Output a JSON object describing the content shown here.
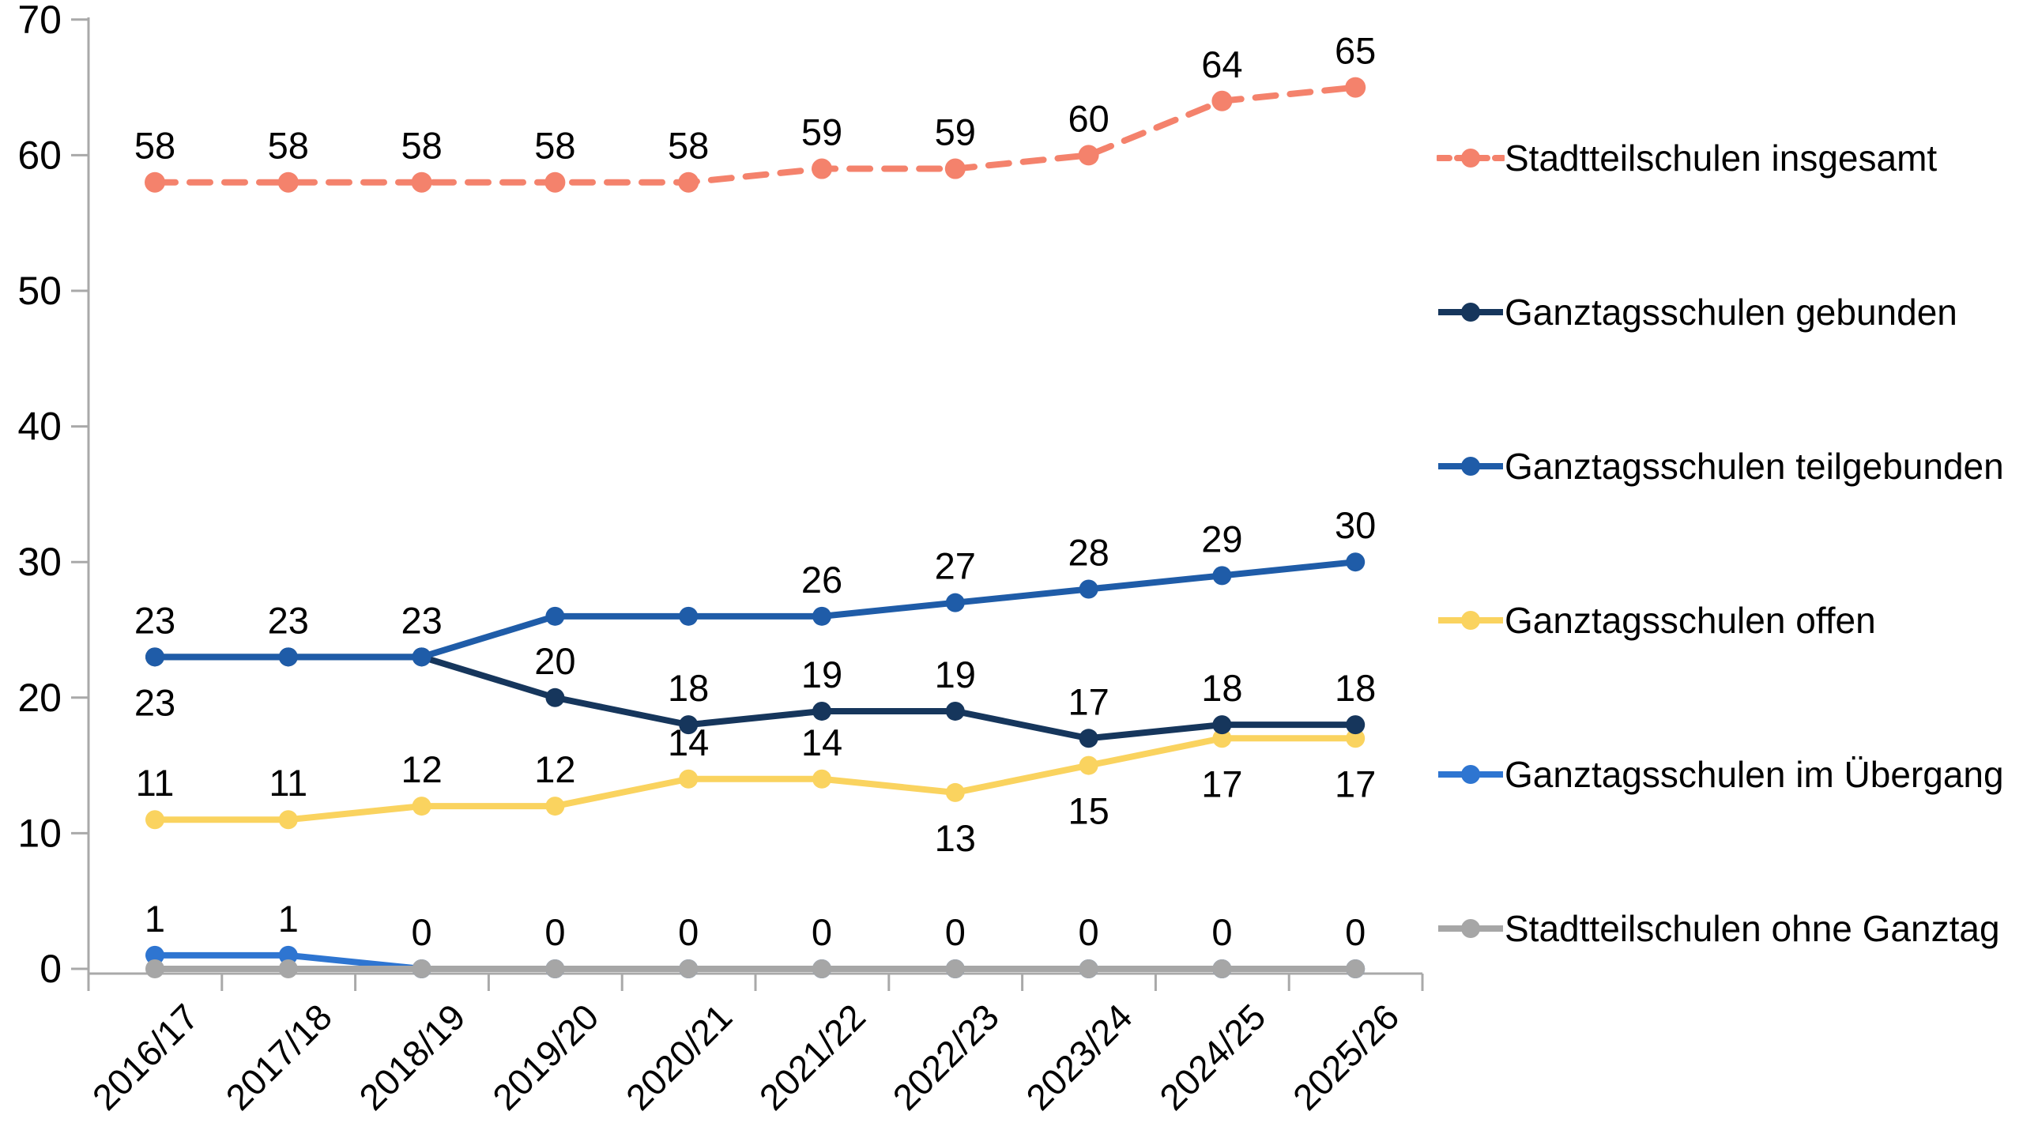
{
  "chart_data": {
    "type": "line",
    "title": "",
    "xlabel": "",
    "ylabel": "",
    "categories": [
      "2016/17",
      "2017/18",
      "2018/19",
      "2019/20",
      "2020/21",
      "2021/22",
      "2022/23",
      "2023/24",
      "2024/25",
      "2025/26"
    ],
    "series": [
      {
        "name": "Stadtteilschulen insgesamt",
        "color": "#F4826C",
        "style": "dashed",
        "values": [
          58,
          58,
          58,
          58,
          58,
          59,
          59,
          60,
          64,
          65
        ],
        "label_pos": [
          "a",
          "a",
          "a",
          "a",
          "a",
          "a",
          "a",
          "a",
          "a",
          "a"
        ]
      },
      {
        "name": "Ganztagsschulen gebunden",
        "color": "#16365C",
        "style": "solid",
        "values": [
          23,
          23,
          23,
          20,
          18,
          19,
          19,
          17,
          18,
          18
        ],
        "label_pos": [
          "b",
          "",
          "",
          "a",
          "a",
          "a",
          "a",
          "a",
          "a",
          "a"
        ]
      },
      {
        "name": "Ganztagsschulen teilgebunden",
        "color": "#1F5CA8",
        "style": "solid",
        "values": [
          23,
          23,
          23,
          26,
          26,
          26,
          27,
          28,
          29,
          30
        ],
        "label_pos": [
          "a",
          "a",
          "a",
          "",
          "",
          "a",
          "a",
          "a",
          "a",
          "a"
        ]
      },
      {
        "name": "Ganztagsschulen offen",
        "color": "#FAD35F",
        "style": "solid",
        "values": [
          11,
          11,
          12,
          12,
          14,
          14,
          13,
          15,
          17,
          17
        ],
        "label_pos": [
          "a",
          "a",
          "a",
          "a",
          "a",
          "a",
          "b",
          "b",
          "b",
          "b"
        ]
      },
      {
        "name": "Ganztagsschulen im Übergang",
        "color": "#2E75D1",
        "style": "solid",
        "values": [
          1,
          1,
          0,
          0,
          0,
          0,
          0,
          0,
          0,
          0
        ],
        "label_pos": [
          "a",
          "a",
          "a",
          "a",
          "a",
          "a",
          "a",
          "a",
          "a",
          "a"
        ]
      },
      {
        "name": "Stadtteilschulen ohne Ganztag",
        "color": "#A6A6A6",
        "style": "solid",
        "values": [
          0,
          0,
          0,
          0,
          0,
          0,
          0,
          0,
          0,
          0
        ],
        "label_pos": [
          "",
          "",
          "",
          "",
          "",
          "",
          "",
          "",
          "",
          ""
        ]
      }
    ],
    "ylim": [
      0,
      70
    ],
    "yticks": [
      0,
      10,
      20,
      30,
      40,
      50,
      60,
      70
    ],
    "grid": false,
    "legend_position": "right",
    "z_order": [
      4,
      5,
      3,
      1,
      2,
      0
    ]
  },
  "axis": {
    "color": "#A9A9A9"
  }
}
